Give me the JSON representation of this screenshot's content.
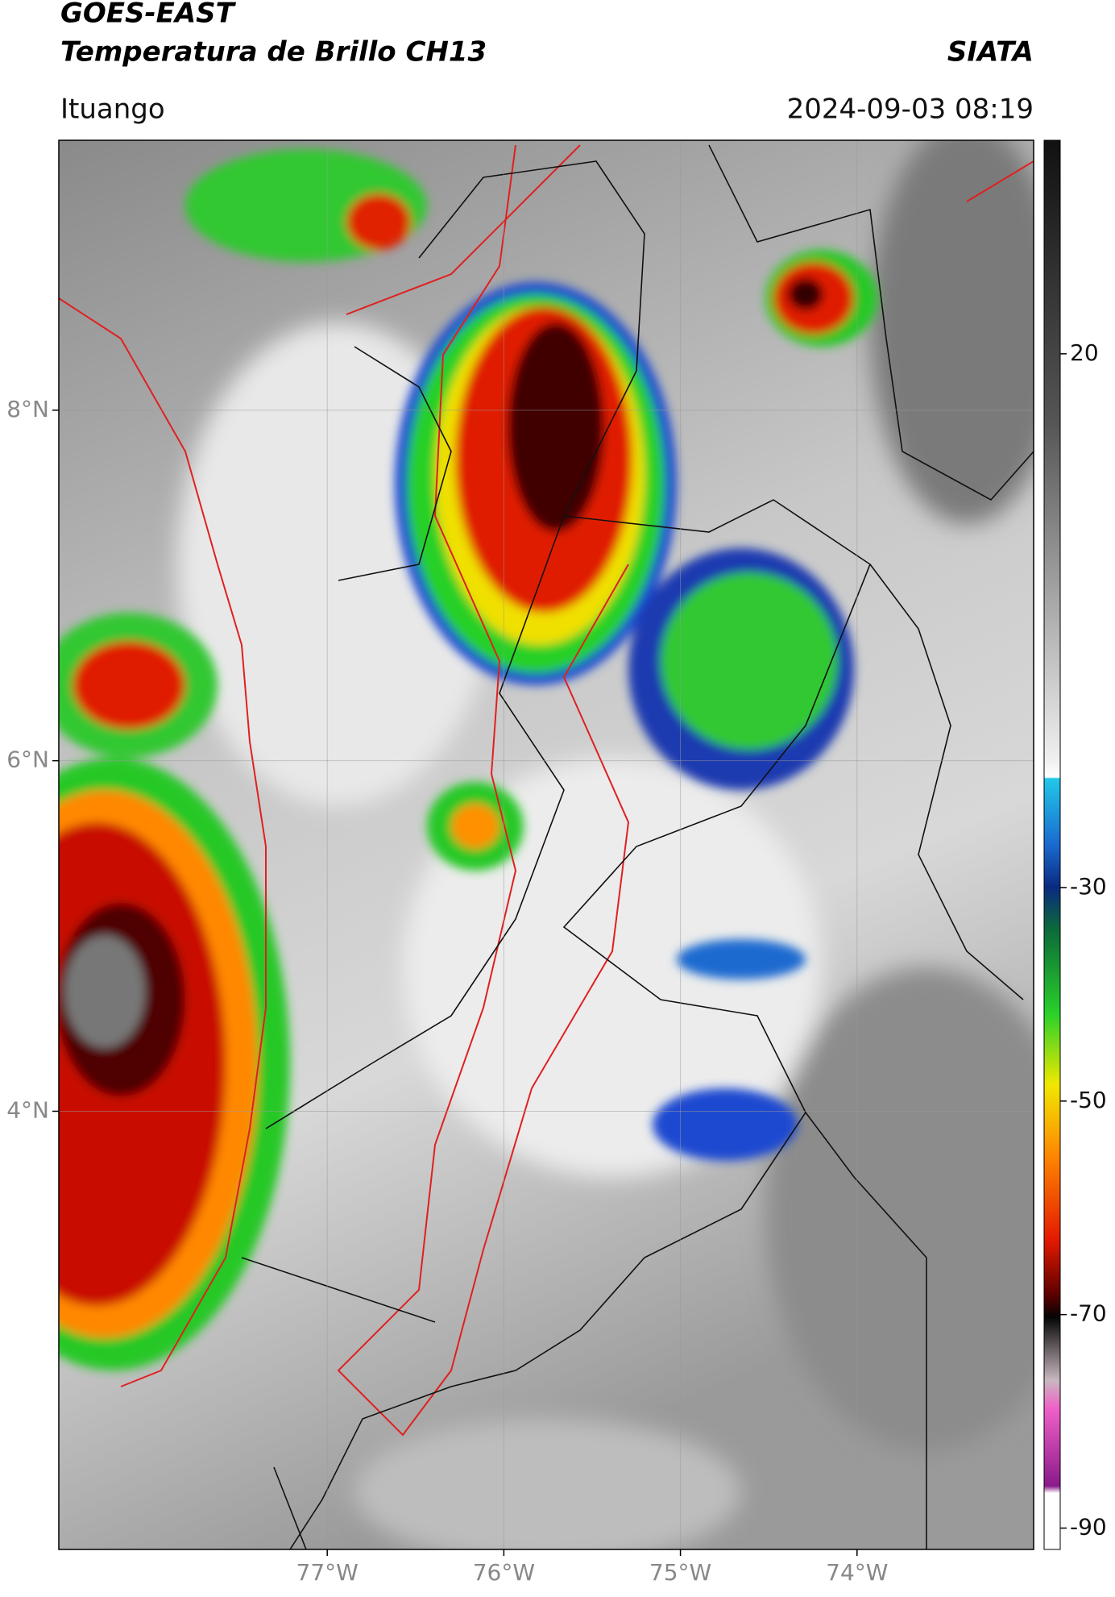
{
  "header": {
    "title": "GOES-EAST",
    "subtitle": "Temperatura de Brillo CH13",
    "source": "SIATA",
    "location": "Ituango",
    "datetime": "2024-09-03 08:19"
  },
  "map": {
    "lonlim": [
      -78.52,
      -73.0
    ],
    "latlim": [
      1.5,
      9.54
    ],
    "lonticks": [
      {
        "value": -77,
        "label": "77°W"
      },
      {
        "value": -76,
        "label": "76°W"
      },
      {
        "value": -75,
        "label": "75°W"
      },
      {
        "value": -74,
        "label": "74°W"
      }
    ],
    "latticks": [
      {
        "value": 8,
        "label": "8°N"
      },
      {
        "value": 6,
        "label": "6°N"
      },
      {
        "value": 4,
        "label": "4°N"
      }
    ]
  },
  "colorbar": {
    "range": [
      -92,
      40
    ],
    "ticks": [
      20,
      -30,
      -50,
      -70,
      -90
    ]
  }
}
